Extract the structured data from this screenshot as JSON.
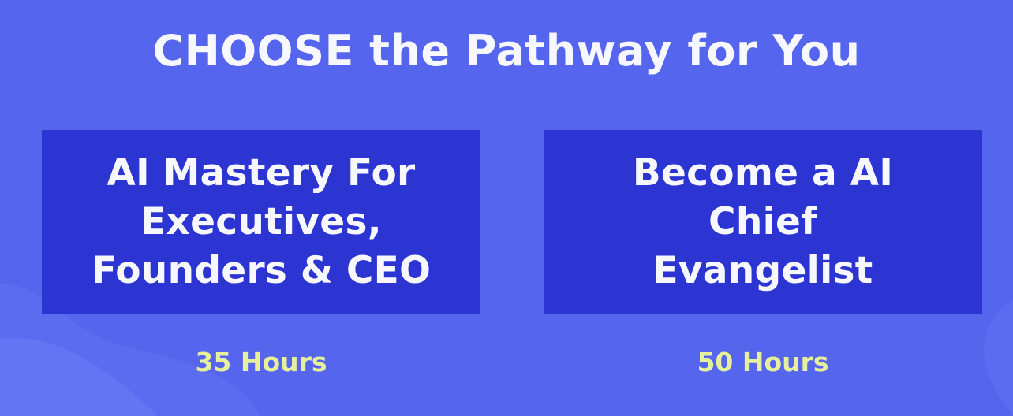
{
  "page": {
    "headline": "CHOOSE the Pathway for You"
  },
  "pathways": [
    {
      "title_lines": [
        "AI Mastery For",
        "Executives,",
        "Founders & CEO"
      ],
      "duration": "35 Hours"
    },
    {
      "title_lines": [
        "Become a AI",
        "Chief",
        "Evangelist"
      ],
      "duration": "50 Hours"
    }
  ],
  "colors": {
    "background": "#5565ee",
    "card": "#2c34d2",
    "title_text": "#f7f8ff",
    "duration_text": "#e6ef9a"
  }
}
